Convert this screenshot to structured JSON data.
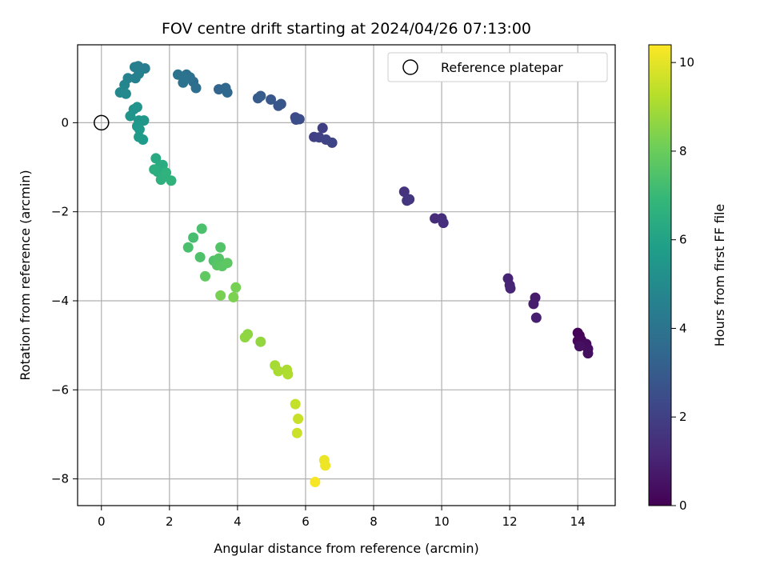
{
  "chart_data": {
    "type": "scatter",
    "title": "FOV centre drift starting at 2024/04/26 07:13:00",
    "xlabel": "Angular distance from reference (arcmin)",
    "ylabel": "Rotation from reference (arcmin)",
    "xlim": [
      -0.7,
      15.1
    ],
    "ylim": [
      -8.6,
      1.75
    ],
    "xticks": [
      0,
      2,
      4,
      6,
      8,
      10,
      12,
      14
    ],
    "yticks": [
      -8,
      -6,
      -4,
      -2,
      0
    ],
    "grid": true,
    "legend": {
      "placement": "top-right",
      "entries": [
        "Reference platepar"
      ]
    },
    "reference_point": {
      "x": 0,
      "y": 0
    },
    "colorbar": {
      "label": "Hours from first FF file",
      "range": [
        0,
        10.4
      ],
      "ticks": [
        0,
        2,
        4,
        6,
        8,
        10
      ],
      "colormap": [
        "#440154",
        "#482878",
        "#3e4989",
        "#31688e",
        "#26828e",
        "#1f9e89",
        "#35b779",
        "#6ece58",
        "#b5de2b",
        "#fde725"
      ]
    },
    "points": [
      {
        "x": 14.0,
        "y": -4.72,
        "h": 0.05
      },
      {
        "x": 14.05,
        "y": -4.78,
        "h": 0.1
      },
      {
        "x": 14.1,
        "y": -4.88,
        "h": 0.15
      },
      {
        "x": 14.0,
        "y": -4.9,
        "h": 0.2
      },
      {
        "x": 14.1,
        "y": -5.0,
        "h": 0.25
      },
      {
        "x": 14.25,
        "y": -4.97,
        "h": 0.3
      },
      {
        "x": 14.3,
        "y": -5.08,
        "h": 0.35
      },
      {
        "x": 14.3,
        "y": -5.18,
        "h": 0.4
      },
      {
        "x": 14.05,
        "y": -5.02,
        "h": 0.45
      },
      {
        "x": 12.75,
        "y": -3.93,
        "h": 0.8
      },
      {
        "x": 12.7,
        "y": -4.07,
        "h": 0.85
      },
      {
        "x": 12.78,
        "y": -4.38,
        "h": 0.9
      },
      {
        "x": 11.95,
        "y": -3.5,
        "h": 1.0
      },
      {
        "x": 12.0,
        "y": -3.65,
        "h": 1.05
      },
      {
        "x": 12.02,
        "y": -3.72,
        "h": 1.1
      },
      {
        "x": 9.8,
        "y": -2.15,
        "h": 1.3
      },
      {
        "x": 10.0,
        "y": -2.15,
        "h": 1.35
      },
      {
        "x": 10.05,
        "y": -2.25,
        "h": 1.4
      },
      {
        "x": 8.9,
        "y": -1.55,
        "h": 1.55
      },
      {
        "x": 8.98,
        "y": -1.75,
        "h": 1.6
      },
      {
        "x": 9.05,
        "y": -1.72,
        "h": 1.65
      },
      {
        "x": 6.5,
        "y": -0.12,
        "h": 1.95
      },
      {
        "x": 6.25,
        "y": -0.32,
        "h": 2.0
      },
      {
        "x": 6.4,
        "y": -0.33,
        "h": 2.05
      },
      {
        "x": 6.6,
        "y": -0.38,
        "h": 2.1
      },
      {
        "x": 6.78,
        "y": -0.45,
        "h": 2.15
      },
      {
        "x": 5.7,
        "y": 0.12,
        "h": 2.4
      },
      {
        "x": 5.72,
        "y": 0.07,
        "h": 2.45
      },
      {
        "x": 5.82,
        "y": 0.08,
        "h": 2.5
      },
      {
        "x": 5.2,
        "y": 0.38,
        "h": 2.75
      },
      {
        "x": 5.28,
        "y": 0.42,
        "h": 2.8
      },
      {
        "x": 4.98,
        "y": 0.52,
        "h": 2.85
      },
      {
        "x": 4.6,
        "y": 0.55,
        "h": 3.0
      },
      {
        "x": 4.68,
        "y": 0.6,
        "h": 3.05
      },
      {
        "x": 3.45,
        "y": 0.75,
        "h": 3.4
      },
      {
        "x": 3.65,
        "y": 0.78,
        "h": 3.45
      },
      {
        "x": 3.7,
        "y": 0.68,
        "h": 3.5
      },
      {
        "x": 2.7,
        "y": 0.92,
        "h": 3.7
      },
      {
        "x": 2.78,
        "y": 0.78,
        "h": 3.75
      },
      {
        "x": 2.5,
        "y": 1.08,
        "h": 3.8
      },
      {
        "x": 2.6,
        "y": 1.02,
        "h": 3.85
      },
      {
        "x": 2.4,
        "y": 0.9,
        "h": 3.9
      },
      {
        "x": 2.25,
        "y": 1.08,
        "h": 3.95
      },
      {
        "x": 2.45,
        "y": 1.0,
        "h": 4.0
      },
      {
        "x": 1.28,
        "y": 1.22,
        "h": 4.4
      },
      {
        "x": 1.08,
        "y": 1.27,
        "h": 4.45
      },
      {
        "x": 0.98,
        "y": 1.25,
        "h": 4.5
      },
      {
        "x": 1.1,
        "y": 1.1,
        "h": 4.55
      },
      {
        "x": 1.0,
        "y": 1.0,
        "h": 4.6
      },
      {
        "x": 0.78,
        "y": 1.0,
        "h": 4.65
      },
      {
        "x": 0.68,
        "y": 0.85,
        "h": 4.75
      },
      {
        "x": 0.55,
        "y": 0.68,
        "h": 4.85
      },
      {
        "x": 0.72,
        "y": 0.65,
        "h": 4.9
      },
      {
        "x": 0.95,
        "y": 0.3,
        "h": 5.3
      },
      {
        "x": 1.05,
        "y": 0.35,
        "h": 5.35
      },
      {
        "x": 0.85,
        "y": 0.15,
        "h": 5.4
      },
      {
        "x": 1.1,
        "y": 0.05,
        "h": 5.45
      },
      {
        "x": 1.25,
        "y": 0.05,
        "h": 5.5
      },
      {
        "x": 1.05,
        "y": -0.08,
        "h": 5.55
      },
      {
        "x": 1.12,
        "y": -0.15,
        "h": 5.6
      },
      {
        "x": 1.1,
        "y": -0.32,
        "h": 5.65
      },
      {
        "x": 1.22,
        "y": -0.38,
        "h": 5.7
      },
      {
        "x": 1.6,
        "y": -0.8,
        "h": 6.3
      },
      {
        "x": 1.7,
        "y": -1.0,
        "h": 6.35
      },
      {
        "x": 1.8,
        "y": -0.95,
        "h": 6.4
      },
      {
        "x": 1.65,
        "y": -1.1,
        "h": 6.45
      },
      {
        "x": 1.55,
        "y": -1.05,
        "h": 6.5
      },
      {
        "x": 1.8,
        "y": -1.2,
        "h": 6.55
      },
      {
        "x": 1.75,
        "y": -1.28,
        "h": 6.6
      },
      {
        "x": 1.9,
        "y": -1.12,
        "h": 6.65
      },
      {
        "x": 2.05,
        "y": -1.3,
        "h": 6.7
      },
      {
        "x": 2.7,
        "y": -2.58,
        "h": 7.3
      },
      {
        "x": 2.55,
        "y": -2.8,
        "h": 7.35
      },
      {
        "x": 2.95,
        "y": -2.38,
        "h": 7.4
      },
      {
        "x": 2.9,
        "y": -3.02,
        "h": 7.45
      },
      {
        "x": 3.3,
        "y": -3.1,
        "h": 7.5
      },
      {
        "x": 3.5,
        "y": -2.8,
        "h": 7.55
      },
      {
        "x": 3.45,
        "y": -3.05,
        "h": 7.6
      },
      {
        "x": 3.4,
        "y": -3.2,
        "h": 7.65
      },
      {
        "x": 3.55,
        "y": -3.22,
        "h": 7.7
      },
      {
        "x": 3.7,
        "y": -3.15,
        "h": 7.75
      },
      {
        "x": 3.05,
        "y": -3.45,
        "h": 7.8
      },
      {
        "x": 3.95,
        "y": -3.7,
        "h": 8.2
      },
      {
        "x": 3.5,
        "y": -3.88,
        "h": 8.25
      },
      {
        "x": 3.88,
        "y": -3.92,
        "h": 8.3
      },
      {
        "x": 4.3,
        "y": -4.75,
        "h": 8.6
      },
      {
        "x": 4.22,
        "y": -4.82,
        "h": 8.65
      },
      {
        "x": 4.68,
        "y": -4.92,
        "h": 8.7
      },
      {
        "x": 5.1,
        "y": -5.45,
        "h": 9.0
      },
      {
        "x": 5.2,
        "y": -5.58,
        "h": 9.05
      },
      {
        "x": 5.45,
        "y": -5.55,
        "h": 9.1
      },
      {
        "x": 5.48,
        "y": -5.65,
        "h": 9.15
      },
      {
        "x": 5.7,
        "y": -6.32,
        "h": 9.5
      },
      {
        "x": 5.78,
        "y": -6.65,
        "h": 9.55
      },
      {
        "x": 5.75,
        "y": -6.97,
        "h": 9.6
      },
      {
        "x": 6.55,
        "y": -7.58,
        "h": 10.1
      },
      {
        "x": 6.58,
        "y": -7.7,
        "h": 10.15
      },
      {
        "x": 6.28,
        "y": -8.07,
        "h": 10.3
      }
    ]
  }
}
